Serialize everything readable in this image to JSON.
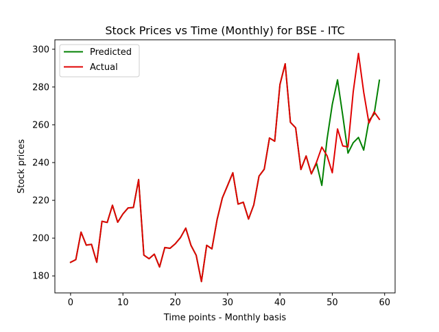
{
  "chart_data": {
    "type": "line",
    "title": "Stock Prices vs Time (Monthly) for BSE - ITC",
    "xlabel": "Time points - Monthly basis",
    "ylabel": "Stock prices",
    "xlim": [
      -3,
      62
    ],
    "ylim": [
      171,
      305
    ],
    "xticks": [
      0,
      10,
      20,
      30,
      40,
      50,
      60
    ],
    "yticks": [
      180,
      200,
      220,
      240,
      260,
      280,
      300
    ],
    "grid": false,
    "legend_position": "top-left",
    "x": [
      0,
      1,
      2,
      3,
      4,
      5,
      6,
      7,
      8,
      9,
      10,
      11,
      12,
      13,
      14,
      15,
      16,
      17,
      18,
      19,
      20,
      21,
      22,
      23,
      24,
      25,
      26,
      27,
      28,
      29,
      30,
      31,
      32,
      33,
      34,
      35,
      36,
      37,
      38,
      39,
      40,
      41,
      42,
      43,
      44,
      45,
      46,
      47,
      48,
      49,
      50,
      51,
      52,
      53,
      54,
      55,
      56,
      57,
      58,
      59
    ],
    "series": [
      {
        "name": "Predicted",
        "color": "#008000",
        "values": [
          187.2,
          188.6,
          203.2,
          196.3,
          196.7,
          187.2,
          208.9,
          208.3,
          217.4,
          208.4,
          212.8,
          216.0,
          216.2,
          231.0,
          191.0,
          189.1,
          191.5,
          184.7,
          195.0,
          194.6,
          197.0,
          200.3,
          205.3,
          196.2,
          190.9,
          177.0,
          196.2,
          194.3,
          209.9,
          221.3,
          227.9,
          234.6,
          218.0,
          219.0,
          210.1,
          217.6,
          232.8,
          236.5,
          253.0,
          251.3,
          281.3,
          292.3,
          261.3,
          258.4,
          236.3,
          243.5,
          234.0,
          239.6,
          227.9,
          252.4,
          270.8,
          283.8,
          264.9,
          245.0,
          250.5,
          253.3,
          246.6,
          262.2,
          265.7,
          283.6
        ]
      },
      {
        "name": "Actual",
        "color": "#e00000",
        "values": [
          187.2,
          188.6,
          203.2,
          196.3,
          196.7,
          187.2,
          208.9,
          208.3,
          217.4,
          208.4,
          212.8,
          216.0,
          216.2,
          231.0,
          191.0,
          189.1,
          191.5,
          184.7,
          195.0,
          194.6,
          197.0,
          200.3,
          205.3,
          196.2,
          190.9,
          177.0,
          196.2,
          194.3,
          209.9,
          221.3,
          227.9,
          234.6,
          218.0,
          219.0,
          210.1,
          217.6,
          232.8,
          236.5,
          253.0,
          251.3,
          281.3,
          292.3,
          261.3,
          258.4,
          236.3,
          243.5,
          234.0,
          240.3,
          248.2,
          243.6,
          234.6,
          257.8,
          248.8,
          248.3,
          277.5,
          297.8,
          277.3,
          260.9,
          266.8,
          262.9
        ]
      }
    ]
  }
}
